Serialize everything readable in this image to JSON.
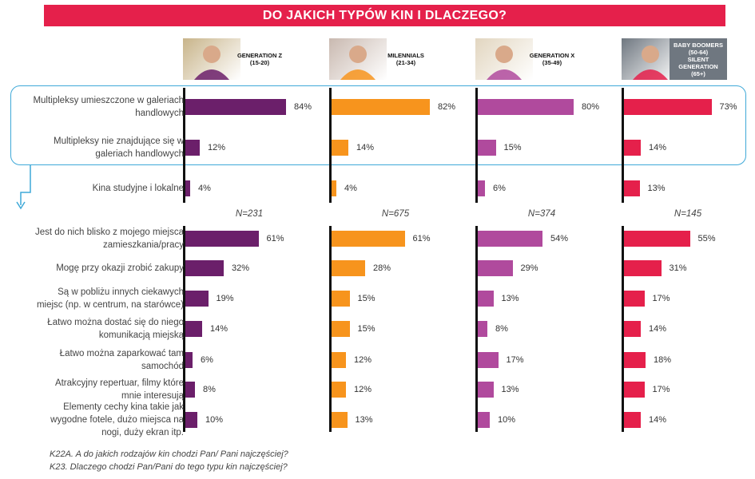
{
  "title": "DO JAKICH TYPÓW KIN I DLACZEGO?",
  "generations": [
    {
      "name": "GENERATION Z",
      "age": "(15-20)",
      "color": "#6b1f6a",
      "photo_bg": "#c8b48a",
      "n": "N=231"
    },
    {
      "name": "MILENNIALS",
      "age": "(21-34)",
      "color": "#f7941d",
      "photo_bg": "#c9b9b0",
      "n": "N=675"
    },
    {
      "name": "GENERATION X",
      "age": "(35-49)",
      "color": "#b04a9d",
      "photo_bg": "#e2d6c0",
      "n": "N=374"
    },
    {
      "name": "BABY BOOMERS",
      "age": "(50-64)",
      "extra": "SILENT GENERATION",
      "extra_age": "(65+)",
      "color": "#e5204b",
      "photo_bg": "#6f7780",
      "n": "N=145"
    }
  ],
  "chart_data": [
    {
      "type": "bar",
      "title": "K22A. A do jakich rodzajów kin chodzi Pan/ Pani najczęściej?",
      "categories": [
        "Multipleksy umieszczone w galeriach handlowych",
        "Multipleksy nie znajdujące się w galeriach handlowych",
        "Kina studyjne i lokalne"
      ],
      "series": [
        {
          "name": "GENERATION Z",
          "values": [
            84,
            12,
            4
          ]
        },
        {
          "name": "MILENNIALS",
          "values": [
            82,
            14,
            4
          ]
        },
        {
          "name": "GENERATION X",
          "values": [
            80,
            15,
            6
          ]
        },
        {
          "name": "BABY BOOMERS / SILENT GENERATION",
          "values": [
            73,
            14,
            13
          ]
        }
      ],
      "unit": "%"
    },
    {
      "type": "bar",
      "title": "K23. Dlaczego chodzi Pan/Pani do tego typu kin najczęściej?",
      "categories": [
        "Jest do nich blisko z mojego miejsca zamieszkania/pracy",
        "Mogę przy okazji zrobić zakupy",
        "Są w pobliżu innych ciekawych miejsc (np. w centrum, na starówce)",
        "Łatwo można dostać się do niego komunikacją miejską",
        "Łatwo można zaparkować tam samochód",
        "Atrakcyjny repertuar, filmy które mnie interesują",
        "Elementy cechy kina takie jak wygodne fotele, dużo miejsca na nogi, duży ekran itp."
      ],
      "series": [
        {
          "name": "GENERATION Z",
          "values": [
            61,
            32,
            19,
            14,
            6,
            8,
            10
          ]
        },
        {
          "name": "MILENNIALS",
          "values": [
            61,
            28,
            15,
            15,
            12,
            12,
            13
          ]
        },
        {
          "name": "GENERATION X",
          "values": [
            54,
            29,
            13,
            8,
            17,
            13,
            10
          ]
        },
        {
          "name": "BABY BOOMERS / SILENT GENERATION",
          "values": [
            55,
            31,
            17,
            14,
            18,
            17,
            14
          ]
        }
      ],
      "unit": "%"
    }
  ],
  "top_category_lines": [
    [
      "Multipleksy umieszczone w galeriach",
      "handlowych"
    ],
    [
      "Multipleksy nie znajdujące się w",
      "galeriach handlowych"
    ],
    [
      "Kina studyjne i lokalne"
    ]
  ],
  "bottom_category_lines": [
    [
      "Jest do nich blisko z mojego miejsca",
      "zamieszkania/pracy"
    ],
    [
      "Mogę przy okazji zrobić zakupy"
    ],
    [
      "Są w pobliżu innych ciekawych",
      "miejsc (np. w centrum, na starówce)"
    ],
    [
      "Łatwo można dostać się do niego",
      "komunikacją miejską"
    ],
    [
      "Łatwo można zaparkować tam",
      "samochód"
    ],
    [
      "Atrakcyjny repertuar, filmy które",
      "mnie interesują"
    ],
    [
      "Elementy cechy kina takie jak",
      "wygodne fotele, dużo miejsca na",
      "nogi, duży ekran itp."
    ]
  ],
  "footnotes": [
    "K22A. A do jakich rodzajów kin chodzi Pan/ Pani najczęściej?",
    "K23. Dlaczego chodzi Pan/Pani do tego typu kin najczęściej?"
  ],
  "highlight_color": "#3fa9d8"
}
